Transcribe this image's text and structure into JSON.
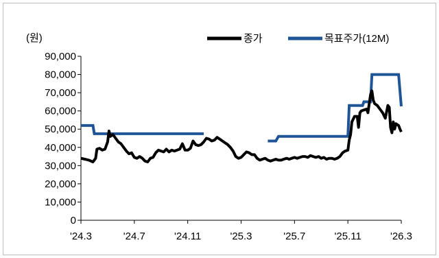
{
  "chart_data": {
    "type": "line",
    "unit_label": "(원)",
    "y_ticks": [
      "90,000",
      "80,000",
      "70,000",
      "60,000",
      "50,000",
      "40,000",
      "30,000",
      "20,000",
      "10,000",
      "0"
    ],
    "ylim": [
      0,
      90000
    ],
    "x_ticks": [
      "'24.3",
      "'24.7",
      "'24.11",
      "'25.3",
      "'25.7",
      "'25.11",
      "'26.3"
    ],
    "x_tick_values": [
      0,
      4,
      8,
      12,
      16,
      20,
      24
    ],
    "xlim": [
      0,
      24
    ],
    "legend_position": "top-right",
    "series": [
      {
        "name": "종가",
        "color": "#000000",
        "points": [
          [
            0.0,
            34000
          ],
          [
            0.3,
            33500
          ],
          [
            0.6,
            33000
          ],
          [
            0.9,
            32000
          ],
          [
            1.1,
            34000
          ],
          [
            1.2,
            39000
          ],
          [
            1.4,
            39500
          ],
          [
            1.6,
            38500
          ],
          [
            1.8,
            39000
          ],
          [
            1.9,
            41000
          ],
          [
            2.0,
            43000
          ],
          [
            2.1,
            49000
          ],
          [
            2.2,
            46000
          ],
          [
            2.4,
            47000
          ],
          [
            2.6,
            45000
          ],
          [
            2.8,
            43000
          ],
          [
            3.0,
            42000
          ],
          [
            3.2,
            40000
          ],
          [
            3.4,
            38000
          ],
          [
            3.6,
            36500
          ],
          [
            3.8,
            37000
          ],
          [
            4.0,
            34500
          ],
          [
            4.2,
            34000
          ],
          [
            4.4,
            35000
          ],
          [
            4.6,
            34000
          ],
          [
            4.8,
            32500
          ],
          [
            5.0,
            32000
          ],
          [
            5.2,
            34000
          ],
          [
            5.4,
            34500
          ],
          [
            5.6,
            37000
          ],
          [
            5.8,
            38500
          ],
          [
            6.0,
            38000
          ],
          [
            6.2,
            37500
          ],
          [
            6.4,
            39000
          ],
          [
            6.6,
            37500
          ],
          [
            6.8,
            38500
          ],
          [
            7.0,
            38000
          ],
          [
            7.2,
            38500
          ],
          [
            7.4,
            39000
          ],
          [
            7.6,
            42000
          ],
          [
            7.8,
            38500
          ],
          [
            8.0,
            38500
          ],
          [
            8.2,
            39500
          ],
          [
            8.4,
            43500
          ],
          [
            8.6,
            41500
          ],
          [
            8.8,
            41000
          ],
          [
            9.0,
            41500
          ],
          [
            9.2,
            43000
          ],
          [
            9.4,
            45000
          ],
          [
            9.6,
            44500
          ],
          [
            9.8,
            43500
          ],
          [
            10.0,
            44000
          ],
          [
            10.2,
            45500
          ],
          [
            10.4,
            44500
          ],
          [
            10.6,
            43500
          ],
          [
            10.8,
            42500
          ],
          [
            11.0,
            41500
          ],
          [
            11.2,
            40000
          ],
          [
            11.4,
            38000
          ],
          [
            11.6,
            35000
          ],
          [
            11.8,
            34000
          ],
          [
            12.0,
            34500
          ],
          [
            12.2,
            36000
          ],
          [
            12.4,
            37500
          ],
          [
            12.6,
            37000
          ],
          [
            12.8,
            36000
          ],
          [
            13.0,
            36000
          ],
          [
            13.2,
            34000
          ],
          [
            13.4,
            33000
          ],
          [
            13.6,
            33500
          ],
          [
            13.8,
            34000
          ],
          [
            14.0,
            33000
          ],
          [
            14.2,
            32500
          ],
          [
            14.4,
            33000
          ],
          [
            14.6,
            33500
          ],
          [
            14.8,
            33000
          ],
          [
            15.0,
            33000
          ],
          [
            15.2,
            33500
          ],
          [
            15.4,
            34000
          ],
          [
            15.6,
            33500
          ],
          [
            15.8,
            34000
          ],
          [
            16.0,
            34500
          ],
          [
            16.2,
            34000
          ],
          [
            16.4,
            34500
          ],
          [
            16.6,
            35000
          ],
          [
            16.8,
            35000
          ],
          [
            17.0,
            34500
          ],
          [
            17.2,
            35500
          ],
          [
            17.4,
            35000
          ],
          [
            17.6,
            34500
          ],
          [
            17.8,
            35000
          ],
          [
            18.0,
            34000
          ],
          [
            18.2,
            34500
          ],
          [
            18.4,
            33500
          ],
          [
            18.6,
            34000
          ],
          [
            18.8,
            34000
          ],
          [
            19.0,
            33500
          ],
          [
            19.2,
            34000
          ],
          [
            19.4,
            35000
          ],
          [
            19.6,
            37000
          ],
          [
            19.8,
            38000
          ],
          [
            20.0,
            38500
          ],
          [
            20.1,
            44000
          ],
          [
            20.2,
            47000
          ],
          [
            20.3,
            54000
          ],
          [
            20.5,
            57000
          ],
          [
            20.7,
            57000
          ],
          [
            20.8,
            51000
          ],
          [
            20.9,
            59000
          ],
          [
            21.0,
            60000
          ],
          [
            21.2,
            60500
          ],
          [
            21.4,
            61000
          ],
          [
            21.5,
            59000
          ],
          [
            21.6,
            64000
          ],
          [
            21.7,
            69000
          ],
          [
            21.8,
            71000
          ],
          [
            21.9,
            66000
          ],
          [
            22.0,
            64000
          ],
          [
            22.2,
            63000
          ],
          [
            22.4,
            61000
          ],
          [
            22.6,
            59000
          ],
          [
            22.8,
            56000
          ],
          [
            23.0,
            63000
          ],
          [
            23.1,
            62000
          ],
          [
            23.2,
            51000
          ],
          [
            23.3,
            48000
          ],
          [
            23.4,
            54000
          ],
          [
            23.5,
            50000
          ],
          [
            23.6,
            53000
          ],
          [
            23.8,
            52000
          ],
          [
            23.9,
            50000
          ],
          [
            24.0,
            48500
          ]
        ]
      },
      {
        "name": "목표주가(12M)",
        "color": "#1f5596",
        "segments": [
          [
            [
              0.0,
              52000
            ],
            [
              0.9,
              52000
            ],
            [
              1.0,
              47500
            ],
            [
              9.2,
              47500
            ]
          ],
          [
            [
              14.0,
              43500
            ],
            [
              14.6,
              43500
            ],
            [
              14.8,
              46000
            ],
            [
              20.0,
              46000
            ],
            [
              20.1,
              63000
            ],
            [
              21.1,
              63000
            ],
            [
              21.2,
              65000
            ],
            [
              21.7,
              65000
            ],
            [
              21.8,
              80000
            ],
            [
              23.8,
              80000
            ],
            [
              24.0,
              62500
            ]
          ]
        ]
      }
    ]
  }
}
